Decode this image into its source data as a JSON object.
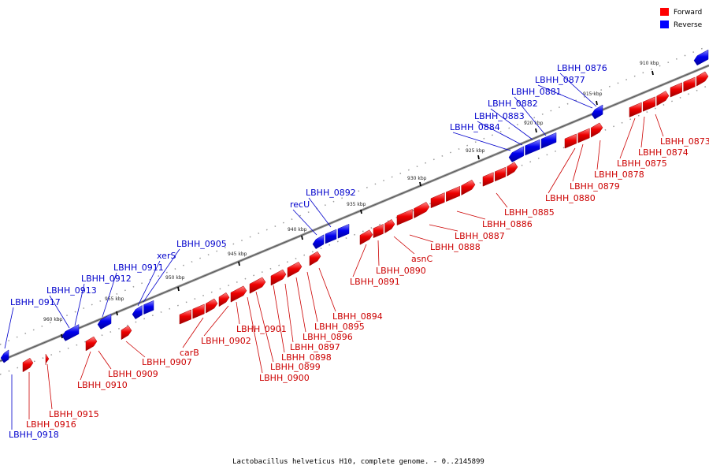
{
  "legend": {
    "items": [
      {
        "label": "Forward",
        "color": "#ff0000"
      },
      {
        "label": "Reverse",
        "color": "#0000ff"
      }
    ]
  },
  "caption": "Lactobacillus helveticus H10, complete genome. - 0..2145899",
  "colors": {
    "forward": "#ff0000",
    "reverse": "#0000ff",
    "backbone": "#808080",
    "tick": "#000000"
  },
  "scale": {
    "ticks": [
      "910 kbp",
      "915 kbp",
      "920 kbp",
      "925 kbp",
      "930 kbp",
      "935 kbp",
      "940 kbp",
      "945 kbp",
      "950 kbp",
      "955 kbp",
      "960 kbp"
    ]
  },
  "genes": {
    "forward": [
      "LBHH_0873",
      "LBHH_0874",
      "LBHH_0875",
      "LBHH_0878",
      "LBHH_0879",
      "LBHH_0880",
      "LBHH_0885",
      "LBHH_0886",
      "LBHH_0887",
      "LBHH_0888",
      "asnC",
      "LBHH_0890",
      "LBHH_0891",
      "LBHH_0894",
      "LBHH_0895",
      "LBHH_0896",
      "LBHH_0897",
      "LBHH_0898",
      "LBHH_0899",
      "LBHH_0900",
      "LBHH_0901",
      "LBHH_0902",
      "carB",
      "LBHH_0907",
      "LBHH_0909",
      "LBHH_0910",
      "LBHH_0915",
      "LBHH_0916"
    ],
    "reverse": [
      "LBHH_0876",
      "LBHH_0877",
      "LBHH_0881",
      "LBHH_0882",
      "LBHH_0883",
      "LBHH_0884",
      "LBHH_0892",
      "recU",
      "LBHH_0905",
      "xerS",
      "LBHH_0911",
      "LBHH_0912",
      "LBHH_0913",
      "LBHH_0917",
      "LBHH_0918"
    ]
  }
}
